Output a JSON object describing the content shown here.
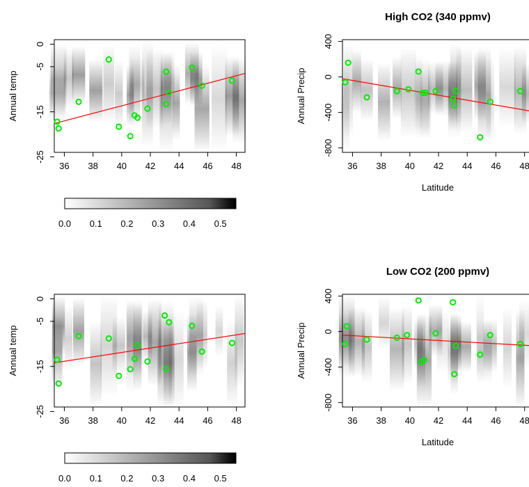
{
  "figure": {
    "colorbar_ticks": [
      "0.0",
      "0.1",
      "0.2",
      "0.3",
      "0.4",
      "0.5"
    ],
    "colorbar_range": [
      0,
      0.55
    ]
  },
  "chart_data": [
    {
      "type": "scatter",
      "title": "",
      "xlabel": "",
      "ylabel": "Annual temp",
      "xlim": [
        35.3,
        48.6
      ],
      "ylim": [
        -24,
        1
      ],
      "xticks": [
        "36",
        "38",
        "40",
        "42",
        "44",
        "46",
        "48"
      ],
      "yticks": [
        "0",
        "-5",
        "-15",
        "-25"
      ],
      "ytick_values": [
        0,
        -5,
        -15,
        -25
      ],
      "points": [
        [
          35.5,
          -17.2
        ],
        [
          35.6,
          -18.7
        ],
        [
          37.0,
          -12.8
        ],
        [
          39.1,
          -3.4
        ],
        [
          39.8,
          -18.3
        ],
        [
          40.6,
          -20.4
        ],
        [
          40.9,
          -15.8
        ],
        [
          41.1,
          -16.3
        ],
        [
          41.8,
          -14.3
        ],
        [
          43.1,
          -6.1
        ],
        [
          43.1,
          -13.3
        ],
        [
          43.3,
          -10.7
        ],
        [
          44.9,
          -5.2
        ],
        [
          45.6,
          -9.2
        ],
        [
          47.7,
          -8.1
        ]
      ],
      "regression_line": [
        [
          35.3,
          -17.6
        ],
        [
          48.6,
          -6.5
        ]
      ],
      "background": "vertical grey density columns (shading = weight, 0 to 0.55)"
    },
    {
      "type": "scatter",
      "title": "High CO2 (340 ppmv)",
      "xlabel": "Latitude",
      "ylabel": "Annual Precip",
      "xlim": [
        35.3,
        48.6
      ],
      "ylim": [
        -850,
        420
      ],
      "xticks": [
        "36",
        "38",
        "40",
        "42",
        "44",
        "46",
        "48"
      ],
      "yticks": [
        "400",
        "0",
        "-400",
        "-800"
      ],
      "ytick_values": [
        400,
        0,
        -400,
        -800
      ],
      "points": [
        [
          35.5,
          -60
        ],
        [
          35.7,
          160
        ],
        [
          37.0,
          -230
        ],
        [
          39.1,
          -160
        ],
        [
          39.9,
          -140
        ],
        [
          40.6,
          60
        ],
        [
          40.9,
          -180
        ],
        [
          41.1,
          -180
        ],
        [
          41.8,
          -160
        ],
        [
          43.0,
          -250
        ],
        [
          43.1,
          -320
        ],
        [
          43.2,
          -160
        ],
        [
          44.9,
          -680
        ],
        [
          45.6,
          -280
        ],
        [
          47.7,
          -160
        ]
      ],
      "regression_line": [
        [
          35.3,
          -20
        ],
        [
          48.6,
          -390
        ]
      ],
      "background": "vertical grey density columns (shading = weight, 0 to 0.55)"
    },
    {
      "type": "scatter",
      "title": "",
      "xlabel": "",
      "ylabel": "Annual temp",
      "xlim": [
        35.3,
        48.6
      ],
      "ylim": [
        -24,
        1
      ],
      "xticks": [
        "36",
        "38",
        "40",
        "42",
        "44",
        "46",
        "48"
      ],
      "yticks": [
        "0",
        "-5",
        "-15",
        "-25"
      ],
      "ytick_values": [
        0,
        -5,
        -15,
        -25
      ],
      "points": [
        [
          35.5,
          -13.5
        ],
        [
          35.6,
          -18.8
        ],
        [
          37.0,
          -8.3
        ],
        [
          39.1,
          -8.8
        ],
        [
          39.8,
          -17.1
        ],
        [
          40.6,
          -15.6
        ],
        [
          40.9,
          -13.3
        ],
        [
          41.1,
          -10.3
        ],
        [
          41.8,
          -13.9
        ],
        [
          43.0,
          -3.7
        ],
        [
          43.1,
          -15.6
        ],
        [
          43.3,
          -5.2
        ],
        [
          44.9,
          -6.0
        ],
        [
          45.6,
          -11.7
        ],
        [
          47.7,
          -9.8
        ]
      ],
      "regression_line": [
        [
          35.3,
          -14.2
        ],
        [
          48.6,
          -7.7
        ]
      ],
      "background": "vertical grey density columns (shading = weight, 0 to 0.55)"
    },
    {
      "type": "scatter",
      "title": "Low CO2 (200 ppmv)",
      "xlabel": "Latitude",
      "ylabel": "Annual Precip",
      "xlim": [
        35.3,
        48.6
      ],
      "ylim": [
        -850,
        420
      ],
      "xticks": [
        "36",
        "38",
        "40",
        "42",
        "44",
        "46",
        "48"
      ],
      "yticks": [
        "400",
        "0",
        "-400",
        "-800"
      ],
      "ytick_values": [
        400,
        0,
        -400,
        -800
      ],
      "points": [
        [
          35.5,
          -140
        ],
        [
          35.6,
          60
        ],
        [
          37.0,
          -90
        ],
        [
          39.1,
          -70
        ],
        [
          39.8,
          -40
        ],
        [
          40.6,
          350
        ],
        [
          40.8,
          -340
        ],
        [
          41.0,
          -320
        ],
        [
          41.8,
          -20
        ],
        [
          43.0,
          330
        ],
        [
          43.1,
          -480
        ],
        [
          43.2,
          -160
        ],
        [
          44.9,
          -260
        ],
        [
          45.6,
          -40
        ],
        [
          47.7,
          -140
        ]
      ],
      "regression_line": [
        [
          35.3,
          -40
        ],
        [
          48.6,
          -160
        ]
      ],
      "background": "vertical grey density columns (shading = weight, 0 to 0.55)"
    }
  ],
  "colors": {
    "points": "#00ee00",
    "regression": "#ff0000",
    "axis": "#000000"
  }
}
